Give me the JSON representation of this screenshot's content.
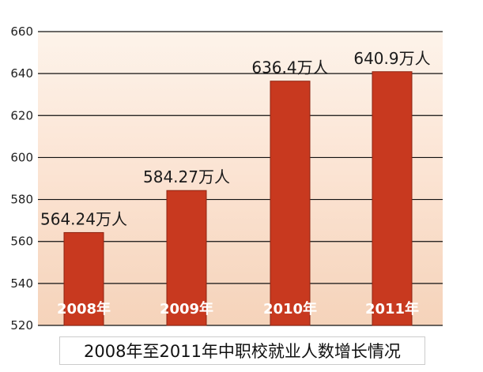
{
  "chart_data": {
    "type": "bar",
    "title": "2008年至2011年中职校就业人数增长情况",
    "categories": [
      "2008年",
      "2009年",
      "2010年",
      "2011年"
    ],
    "values": [
      564.24,
      584.27,
      636.4,
      640.9
    ],
    "data_labels": [
      "564.24万人",
      "584.27万人",
      "636.4万人",
      "640.9万人"
    ],
    "ylim": [
      520,
      660
    ],
    "yticks": [
      520,
      540,
      560,
      580,
      600,
      620,
      640,
      660
    ],
    "grid": true,
    "xlabel": "",
    "ylabel": ""
  },
  "colors": {
    "bar": "#c8391f",
    "bar_edge": "#8e2412",
    "background_light": "#fbe9dc",
    "background_dark": "#f3cfb4"
  }
}
